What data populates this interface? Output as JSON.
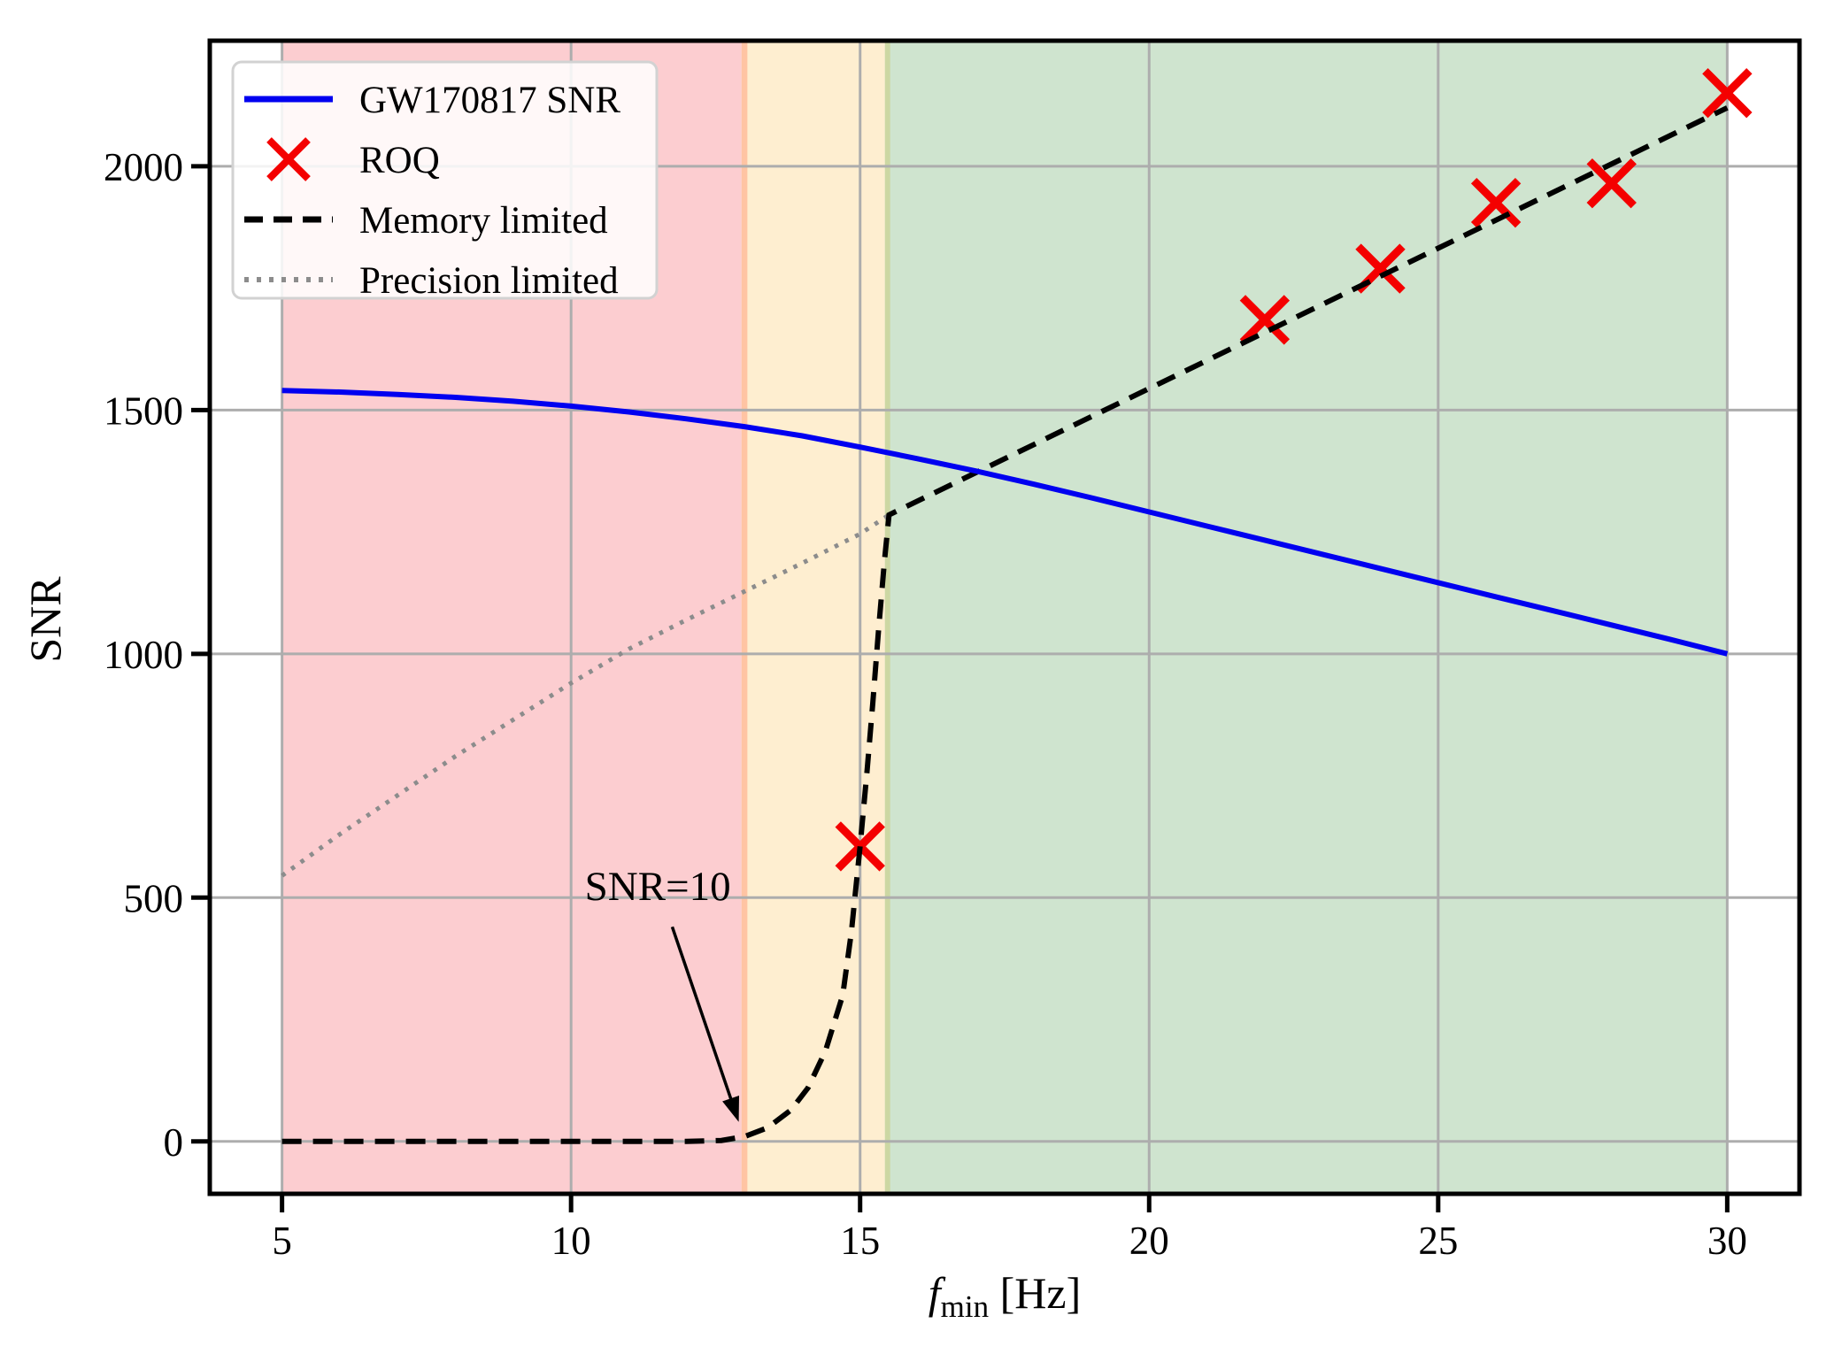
{
  "chart_data": {
    "type": "line",
    "title": "",
    "xlabel": "f_min [Hz]",
    "xlabel_parts": {
      "f": "f",
      "sub": "min",
      "unit": " [Hz]"
    },
    "ylabel": "SNR",
    "xlim": [
      3.75,
      31.25
    ],
    "ylim": [
      -107.5,
      2257.5
    ],
    "xticks": [
      5,
      10,
      15,
      20,
      25,
      30
    ],
    "yticks": [
      0,
      500,
      1000,
      1500,
      2000
    ],
    "grid": true,
    "grid_color": "#adadad",
    "legend_position": "upper left",
    "series": [
      {
        "name": "GW170817 SNR",
        "type": "line",
        "style": "solid",
        "color": "#0000f0",
        "width": 6,
        "points": [
          [
            5,
            1540
          ],
          [
            6,
            1537
          ],
          [
            7,
            1532
          ],
          [
            8,
            1526
          ],
          [
            9,
            1518
          ],
          [
            10,
            1508
          ],
          [
            11,
            1496
          ],
          [
            12,
            1482
          ],
          [
            13,
            1466
          ],
          [
            14,
            1447
          ],
          [
            15,
            1424
          ],
          [
            16,
            1400
          ],
          [
            17,
            1375
          ],
          [
            18,
            1348
          ],
          [
            19,
            1320
          ],
          [
            20,
            1291
          ],
          [
            21,
            1262
          ],
          [
            22,
            1233
          ],
          [
            23,
            1204
          ],
          [
            24,
            1175
          ],
          [
            25,
            1146
          ],
          [
            26,
            1117
          ],
          [
            27,
            1088
          ],
          [
            28,
            1059
          ],
          [
            29,
            1030
          ],
          [
            30,
            1000
          ]
        ]
      },
      {
        "name": "ROQ",
        "type": "scatter",
        "marker": "x",
        "color": "#f40000",
        "size": 50,
        "points": [
          [
            15,
            605
          ],
          [
            22,
            1685
          ],
          [
            24,
            1790
          ],
          [
            26,
            1925
          ],
          [
            28,
            1965
          ],
          [
            30,
            2150
          ]
        ]
      },
      {
        "name": "Memory limited",
        "type": "line",
        "style": "dashed",
        "color": "#000000",
        "width": 6,
        "points": [
          [
            5,
            0
          ],
          [
            12,
            0
          ],
          [
            12.6,
            2
          ],
          [
            13,
            10
          ],
          [
            13.4,
            28
          ],
          [
            13.8,
            64
          ],
          [
            14.1,
            110
          ],
          [
            14.4,
            185
          ],
          [
            14.7,
            300
          ],
          [
            14.85,
            430
          ],
          [
            15,
            605
          ],
          [
            15.12,
            760
          ],
          [
            15.22,
            900
          ],
          [
            15.32,
            1050
          ],
          [
            15.42,
            1190
          ],
          [
            15.5,
            1285
          ],
          [
            30,
            2120
          ]
        ]
      },
      {
        "name": "Precision limited",
        "type": "line",
        "style": "dotted",
        "color": "#8c8c8c",
        "width": 5,
        "points": [
          [
            5,
            545
          ],
          [
            6,
            630
          ],
          [
            7,
            710
          ],
          [
            8,
            790
          ],
          [
            9,
            865
          ],
          [
            10,
            940
          ],
          [
            11,
            1010
          ],
          [
            12,
            1070
          ],
          [
            13,
            1128
          ],
          [
            14,
            1186
          ],
          [
            15,
            1246
          ],
          [
            15.5,
            1285
          ]
        ]
      }
    ],
    "regions": [
      {
        "label": "memory-limited-zone-red",
        "xmin": 5,
        "xmax": 13.05,
        "color": "#fccdd0"
      },
      {
        "label": "transition-zone-orange",
        "xmin": 12.95,
        "xmax": 15.52,
        "color": "#feeed0"
      },
      {
        "label": "feasible-zone-green",
        "xmin": 15.43,
        "xmax": 30,
        "color": "#cfe4cf"
      }
    ],
    "region_overlap_colors": [
      "#ffc4a3",
      "#ccd7a3"
    ],
    "annotation": {
      "text": "SNR=10",
      "text_xy": [
        11.5,
        495
      ],
      "arrow_start": [
        11.75,
        440
      ],
      "arrow_tip": [
        12.9,
        40
      ]
    },
    "spine_color": "#000000",
    "background_color": "#ffffff",
    "legend_background": "rgba(255,255,255,0.85)",
    "legend_border": "#d2d2d2"
  }
}
